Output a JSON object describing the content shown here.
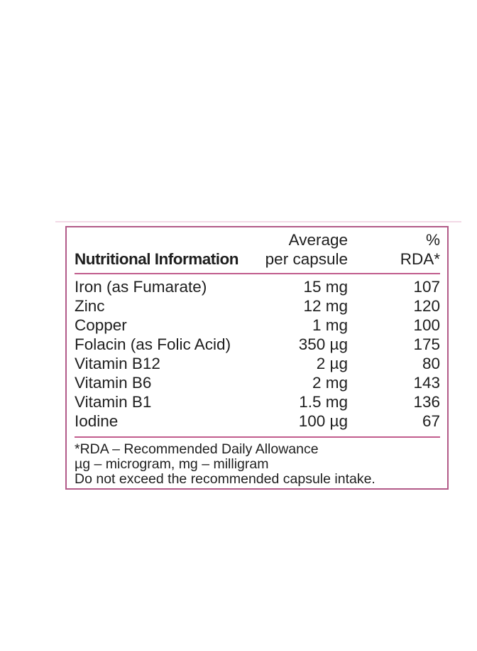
{
  "panel": {
    "header": {
      "col1": "Nutritional Information",
      "col2_line1": "Average",
      "col2_line2": "per capsule",
      "col3_line1": "%",
      "col3_line2": "RDA*"
    },
    "rows": [
      {
        "name": "Iron (as Fumarate)",
        "amount": "15 mg",
        "rda": "107"
      },
      {
        "name": "Zinc",
        "amount": "12 mg",
        "rda": "120"
      },
      {
        "name": "Copper",
        "amount": "1 mg",
        "rda": "100"
      },
      {
        "name": "Folacin (as Folic Acid)",
        "amount": "350 µg",
        "rda": "175"
      },
      {
        "name": "Vitamin B12",
        "amount": "2 µg",
        "rda": "80"
      },
      {
        "name": "Vitamin B6",
        "amount": "2 mg",
        "rda": "143"
      },
      {
        "name": "Vitamin B1",
        "amount": "1.5 mg",
        "rda": "136"
      },
      {
        "name": "Iodine",
        "amount": "100 µg",
        "rda": "67"
      }
    ],
    "footnotes": [
      "*RDA – Recommended Daily Allowance",
      "µg – microgram, mg – milligram",
      "Do not exceed the recommended capsule intake."
    ],
    "colors": {
      "border_pink": "#b25a88",
      "rule_pink": "#c15d8d",
      "text": "#1e1e1e"
    }
  },
  "chart_data": {
    "type": "table",
    "title": "Nutritional Information",
    "columns": [
      "Nutritional Information",
      "Average per capsule",
      "% RDA*"
    ],
    "rows": [
      [
        "Iron (as Fumarate)",
        "15 mg",
        107
      ],
      [
        "Zinc",
        "12 mg",
        120
      ],
      [
        "Copper",
        "1 mg",
        100
      ],
      [
        "Folacin (as Folic Acid)",
        "350 µg",
        175
      ],
      [
        "Vitamin B12",
        "2 µg",
        80
      ],
      [
        "Vitamin B6",
        "2 mg",
        143
      ],
      [
        "Vitamin B1",
        "1.5 mg",
        136
      ],
      [
        "Iodine",
        "100 µg",
        67
      ]
    ]
  }
}
